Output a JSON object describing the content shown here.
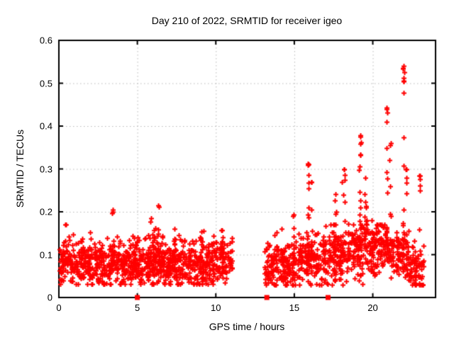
{
  "window": {
    "background": "#ffffff"
  },
  "chart_data": {
    "type": "scatter",
    "title": "Day 210 of 2022, SRMTID for receiver igeo",
    "xlabel": "GPS time / hours",
    "ylabel": "SRMTID / TECUs",
    "xlim": [
      0,
      24
    ],
    "ylim": [
      0,
      0.6
    ],
    "xtick_values": [
      0,
      5,
      10,
      15,
      20
    ],
    "xtick_labels": [
      "0",
      "5",
      "10",
      "15",
      "20"
    ],
    "ytick_values": [
      0,
      0.1,
      0.2,
      0.3,
      0.4,
      0.5,
      0.6
    ],
    "ytick_labels": [
      "0",
      "0.1",
      "0.2",
      "0.3",
      "0.4",
      "0.5",
      "0.6"
    ],
    "grid": true,
    "legend": "none",
    "colors": {
      "marker": "#ff0000",
      "grid": "#b8b8b8",
      "border": "#000000",
      "text": "#000000",
      "background": "#ffffff"
    },
    "marker": {
      "shape": "plus",
      "size": 7,
      "stroke": 2
    },
    "square_marker": {
      "shape": "filled-square",
      "size": 7
    },
    "square_points": [
      [
        5.0,
        0
      ],
      [
        13.25,
        0
      ],
      [
        17.15,
        0
      ]
    ],
    "notable_points": [
      [
        21.93,
        0.535
      ],
      [
        21.99,
        0.525
      ],
      [
        21.96,
        0.505
      ],
      [
        20.88,
        0.44
      ],
      [
        20.92,
        0.432
      ],
      [
        21.1,
        0.355
      ],
      [
        19.2,
        0.375
      ],
      [
        19.24,
        0.362
      ],
      [
        15.9,
        0.31
      ],
      [
        16.08,
        0.27
      ],
      [
        18.15,
        0.3
      ],
      [
        22.15,
        0.3
      ],
      [
        23.0,
        0.285
      ],
      [
        6.33,
        0.215
      ],
      [
        3.45,
        0.205
      ],
      [
        0.45,
        0.17
      ]
    ],
    "data_gap_hours": [
      11.05,
      13.1
    ],
    "generator": {
      "seed": 210,
      "spike_shape_exponent": 2.2,
      "segments": [
        {
          "x0": 0.05,
          "x1": 11.05,
          "n": 950,
          "sd": 0.027,
          "min": 0.032,
          "max": 0.155,
          "tail_p": 0.03,
          "tail_add": 0.045,
          "trend": [
            [
              0,
              0.085
            ],
            [
              2,
              0.08
            ],
            [
              5,
              0.078
            ],
            [
              8,
              0.08
            ],
            [
              11.05,
              0.082
            ]
          ]
        },
        {
          "x0": 13.1,
          "x1": 23.25,
          "n": 820,
          "sd": 0.03,
          "min": 0.03,
          "max": 0.17,
          "tail_p": 0.05,
          "tail_add": 0.06,
          "trend": [
            [
              13.1,
              0.072
            ],
            [
              15,
              0.082
            ],
            [
              17,
              0.09
            ],
            [
              18.5,
              0.105
            ],
            [
              19.8,
              0.12
            ],
            [
              20.8,
              0.115
            ],
            [
              21.8,
              0.095
            ],
            [
              22.4,
              0.07
            ],
            [
              23.25,
              0.075
            ]
          ]
        }
      ],
      "spikes": [
        {
          "x": 0.45,
          "w": 0.55,
          "top": 0.17,
          "base": 0.08,
          "n": 16
        },
        {
          "x": 3.45,
          "w": 0.15,
          "top": 0.205,
          "base": 0.09,
          "n": 10
        },
        {
          "x": 6.0,
          "w": 0.45,
          "top": 0.185,
          "base": 0.09,
          "n": 14
        },
        {
          "x": 6.33,
          "w": 0.12,
          "top": 0.215,
          "base": 0.1,
          "n": 12
        },
        {
          "x": 7.35,
          "w": 0.2,
          "top": 0.16,
          "base": 0.09,
          "n": 8
        },
        {
          "x": 9.05,
          "w": 0.2,
          "top": 0.155,
          "base": 0.09,
          "n": 8
        },
        {
          "x": 10.35,
          "w": 0.25,
          "top": 0.155,
          "base": 0.09,
          "n": 8
        },
        {
          "x": 14.2,
          "w": 0.15,
          "top": 0.155,
          "base": 0.08,
          "n": 6
        },
        {
          "x": 14.95,
          "w": 0.12,
          "top": 0.19,
          "base": 0.09,
          "n": 8
        },
        {
          "x": 15.9,
          "w": 0.1,
          "top": 0.31,
          "base": 0.1,
          "n": 14
        },
        {
          "x": 16.08,
          "w": 0.09,
          "top": 0.27,
          "base": 0.1,
          "n": 8
        },
        {
          "x": 17.6,
          "w": 0.2,
          "top": 0.235,
          "base": 0.1,
          "n": 10
        },
        {
          "x": 18.15,
          "w": 0.25,
          "top": 0.3,
          "base": 0.1,
          "n": 12
        },
        {
          "x": 19.2,
          "w": 0.14,
          "top": 0.375,
          "base": 0.12,
          "n": 16
        },
        {
          "x": 19.55,
          "w": 0.25,
          "top": 0.285,
          "base": 0.12,
          "n": 12
        },
        {
          "x": 20.9,
          "w": 0.12,
          "top": 0.44,
          "base": 0.12,
          "n": 13
        },
        {
          "x": 21.1,
          "w": 0.1,
          "top": 0.355,
          "base": 0.12,
          "n": 8
        },
        {
          "x": 21.95,
          "w": 0.12,
          "top": 0.535,
          "base": 0.1,
          "n": 15
        },
        {
          "x": 22.15,
          "w": 0.1,
          "top": 0.3,
          "base": 0.09,
          "n": 8
        },
        {
          "x": 23.0,
          "w": 0.12,
          "top": 0.285,
          "base": 0.08,
          "n": 5
        }
      ]
    }
  }
}
